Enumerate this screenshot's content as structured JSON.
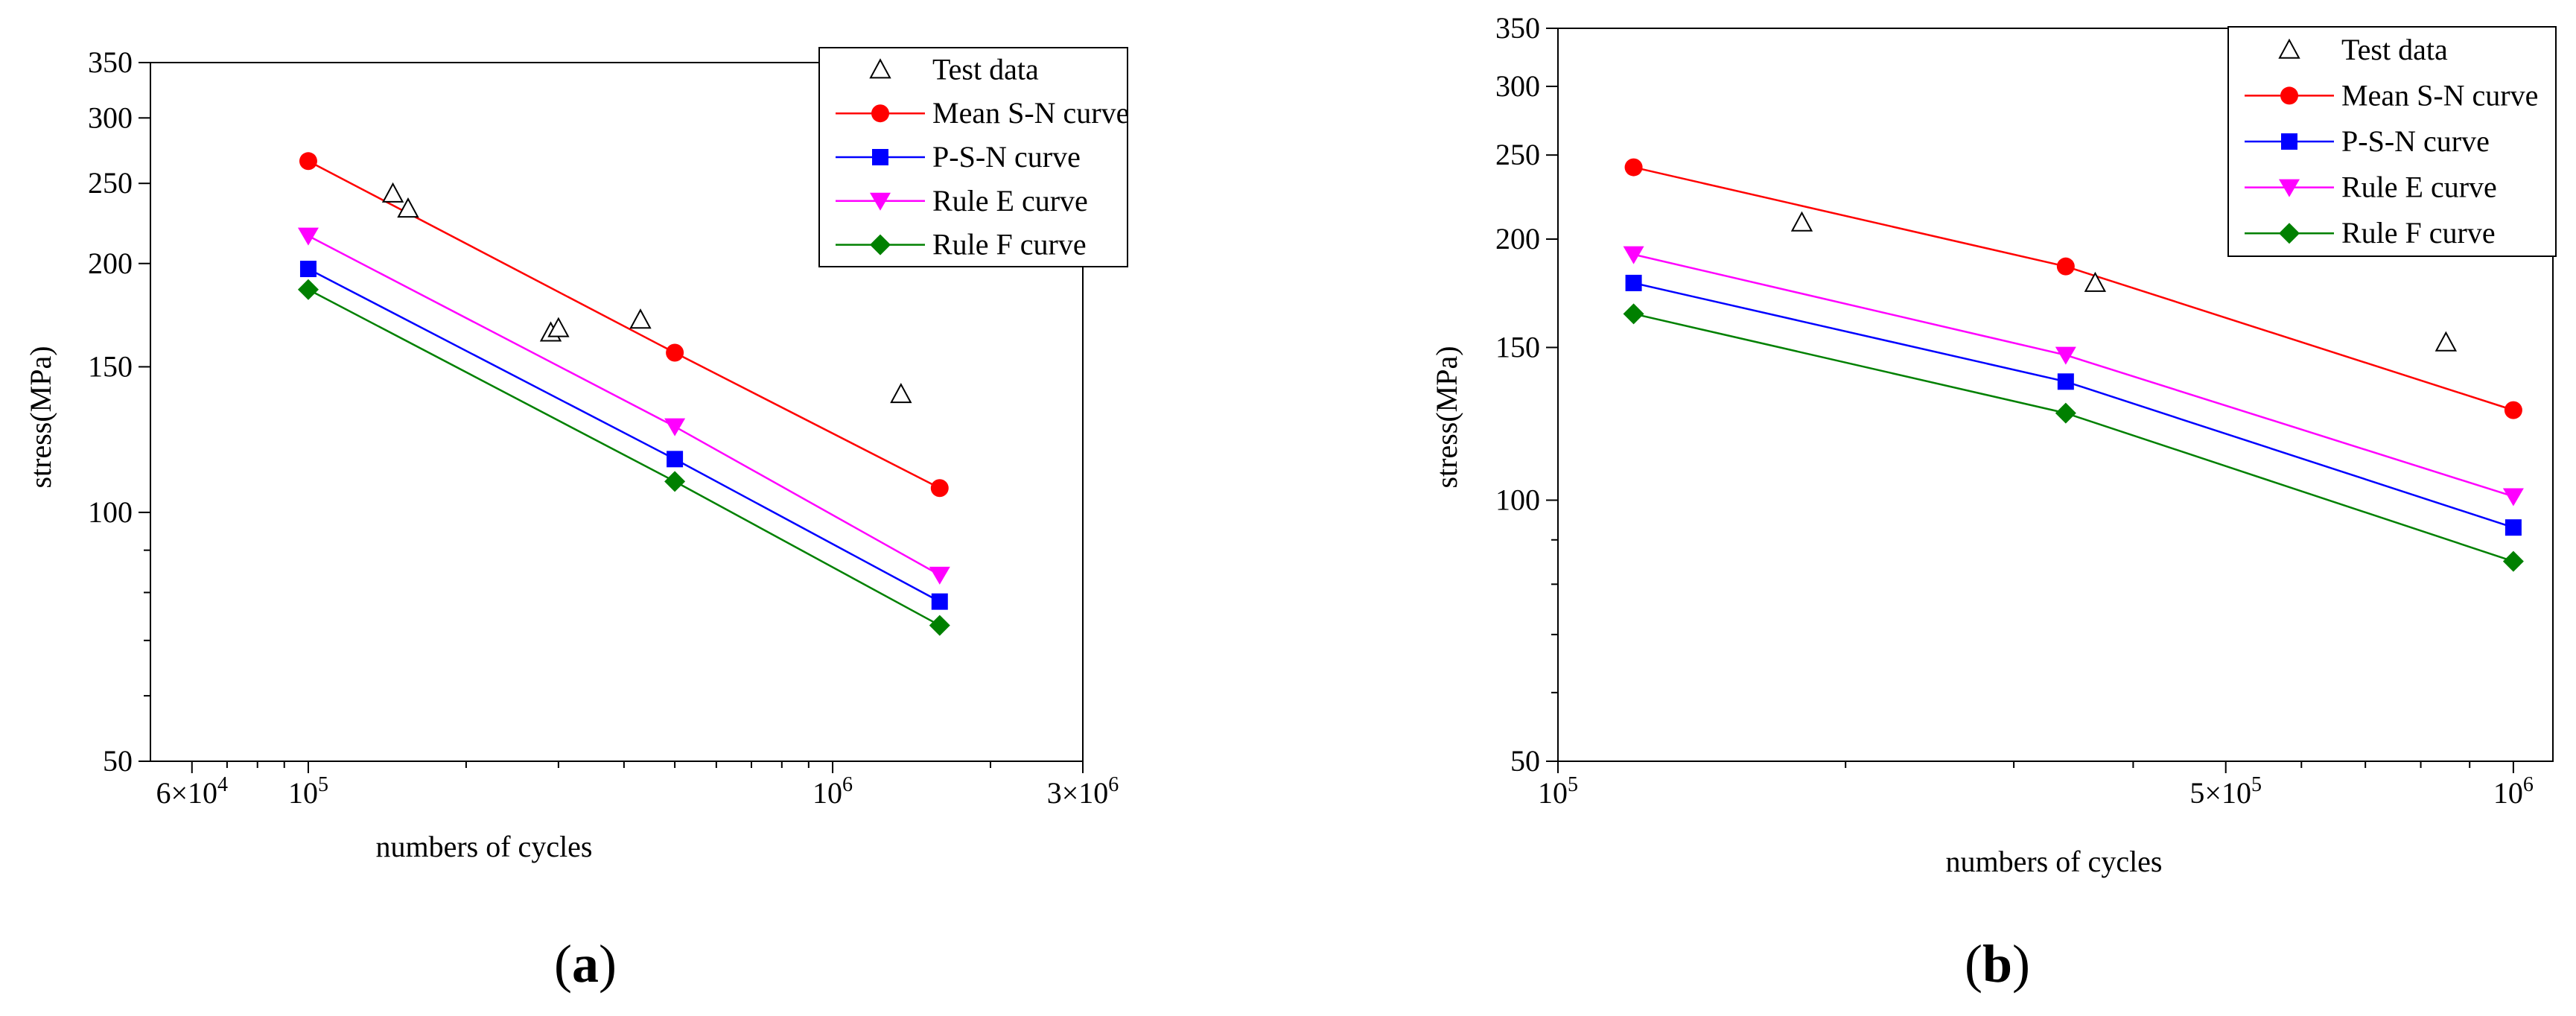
{
  "chart_data": [
    {
      "type": "line",
      "panel": "a",
      "panel_label": "a",
      "xlabel": "numbers of cycles",
      "ylabel": "stress(MPa)",
      "xscale": "log",
      "yscale": "log",
      "xlim": [
        50000,
        3000000
      ],
      "ylim": [
        50,
        350
      ],
      "x_major_ticks": [
        {
          "value": 60000,
          "mantissa": "6",
          "exp": "4",
          "label": "6×10^4"
        },
        {
          "value": 100000,
          "mantissa": "",
          "exp": "5",
          "label": "10^5"
        },
        {
          "value": 1000000,
          "mantissa": "",
          "exp": "6",
          "label": "10^6"
        },
        {
          "value": 3000000,
          "mantissa": "3",
          "exp": "6",
          "label": "3×10^6"
        }
      ],
      "x_minor_ticks": [
        70000,
        80000,
        90000,
        200000,
        300000,
        400000,
        500000,
        600000,
        700000,
        800000,
        900000,
        2000000
      ],
      "y_ticks": [
        {
          "value": 50,
          "label": "50"
        },
        {
          "value": 100,
          "label": "100"
        },
        {
          "value": 150,
          "label": "150"
        },
        {
          "value": 200,
          "label": "200"
        },
        {
          "value": 250,
          "label": "250"
        },
        {
          "value": 300,
          "label": "300"
        },
        {
          "value": 350,
          "label": "350"
        }
      ],
      "y_minor_ticks": [
        60,
        70,
        80,
        90
      ],
      "legend_position": "top-right",
      "series": [
        {
          "name": "Test data",
          "marker": "open-triangle",
          "color": "#000000",
          "line": false,
          "x": [
            145000,
            155000,
            290000,
            300000,
            430000,
            1350000
          ],
          "y": [
            243,
            233,
            165,
            167,
            171,
            139
          ]
        },
        {
          "name": "Mean S-N curve",
          "marker": "circle",
          "color": "#ff0000",
          "line": true,
          "x": [
            100000,
            500000,
            1600000
          ],
          "y": [
            266,
            156,
            107
          ]
        },
        {
          "name": "P-S-N curve",
          "marker": "square",
          "color": "#0000ff",
          "line": true,
          "x": [
            100000,
            500000,
            1600000
          ],
          "y": [
            197,
            116,
            78
          ]
        },
        {
          "name": "Rule E curve",
          "marker": "down-triangle",
          "color": "#ff00ff",
          "line": true,
          "x": [
            100000,
            500000,
            1600000
          ],
          "y": [
            216,
            127,
            84
          ]
        },
        {
          "name": "Rule F curve",
          "marker": "diamond",
          "color": "#008000",
          "line": true,
          "x": [
            100000,
            500000,
            1600000
          ],
          "y": [
            186,
            109,
            73
          ]
        }
      ]
    },
    {
      "type": "line",
      "panel": "b",
      "panel_label": "b",
      "xlabel": "numbers of cycles",
      "ylabel": "stress(MPa)",
      "xscale": "log",
      "yscale": "log",
      "xlim": [
        100000,
        1100000
      ],
      "ylim": [
        50,
        350
      ],
      "x_major_ticks": [
        {
          "value": 100000,
          "mantissa": "",
          "exp": "5",
          "label": "10^5"
        },
        {
          "value": 500000,
          "mantissa": "5",
          "exp": "5",
          "label": "5×10^5"
        },
        {
          "value": 1000000,
          "mantissa": "",
          "exp": "6",
          "label": "10^6"
        }
      ],
      "x_minor_ticks": [
        200000,
        300000,
        400000,
        600000,
        700000,
        800000,
        900000
      ],
      "y_ticks": [
        {
          "value": 50,
          "label": "50"
        },
        {
          "value": 100,
          "label": "100"
        },
        {
          "value": 150,
          "label": "150"
        },
        {
          "value": 200,
          "label": "200"
        },
        {
          "value": 250,
          "label": "250"
        },
        {
          "value": 300,
          "label": "300"
        },
        {
          "value": 350,
          "label": "350"
        }
      ],
      "y_minor_ticks": [
        60,
        70,
        80,
        90
      ],
      "legend_position": "top-right",
      "series": [
        {
          "name": "Test data",
          "marker": "open-triangle",
          "color": "#000000",
          "line": false,
          "x": [
            180000,
            365000,
            850000
          ],
          "y": [
            209,
            178,
            152
          ]
        },
        {
          "name": "Mean S-N curve",
          "marker": "circle",
          "color": "#ff0000",
          "line": true,
          "x": [
            120000,
            340000,
            1000000
          ],
          "y": [
            242,
            186,
            127
          ]
        },
        {
          "name": "P-S-N curve",
          "marker": "square",
          "color": "#0000ff",
          "line": true,
          "x": [
            120000,
            340000,
            1000000
          ],
          "y": [
            178,
            137,
            93
          ]
        },
        {
          "name": "Rule E curve",
          "marker": "down-triangle",
          "color": "#ff00ff",
          "line": true,
          "x": [
            120000,
            340000,
            1000000
          ],
          "y": [
            192,
            147,
            101
          ]
        },
        {
          "name": "Rule F curve",
          "marker": "diamond",
          "color": "#008000",
          "line": true,
          "x": [
            120000,
            340000,
            1000000
          ],
          "y": [
            164,
            126,
            85
          ]
        }
      ]
    }
  ]
}
